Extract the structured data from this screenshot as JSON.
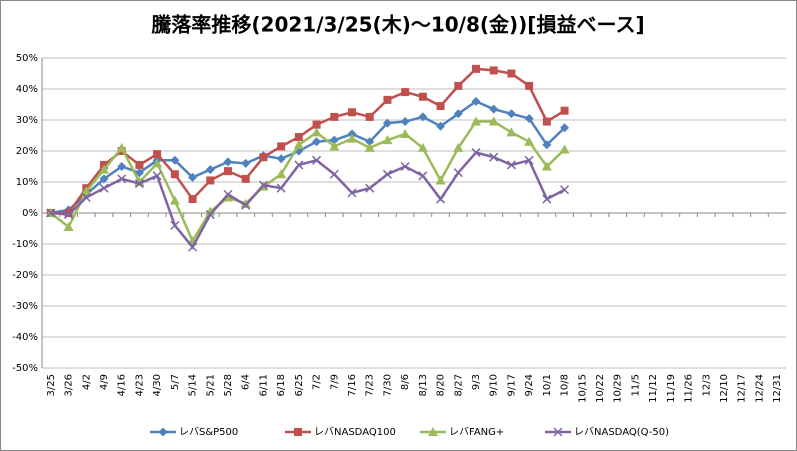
{
  "chart_data": {
    "type": "line",
    "title": "騰落率推移(2021/3/25(木)～10/8(金))[損益ベース]",
    "categories": [
      "3/25",
      "3/26",
      "4/2",
      "4/9",
      "4/16",
      "4/23",
      "4/30",
      "5/7",
      "5/14",
      "5/21",
      "5/28",
      "6/4",
      "6/11",
      "6/18",
      "6/25",
      "7/2",
      "7/9",
      "7/16",
      "7/23",
      "7/30",
      "8/6",
      "8/13",
      "8/20",
      "8/27",
      "9/3",
      "9/10",
      "9/17",
      "9/24",
      "10/1",
      "10/8",
      "10/15",
      "10/22",
      "10/29",
      "11/5",
      "11/12",
      "11/19",
      "11/26",
      "12/3",
      "12/10",
      "12/17",
      "12/24",
      "12/31"
    ],
    "series": [
      {
        "name": "レバS&P500",
        "color": "#4f81bd",
        "marker": "diamond",
        "values": [
          0,
          1,
          6,
          11,
          15,
          13,
          17,
          17,
          11.5,
          14,
          16.5,
          16,
          18.5,
          17.5,
          20,
          23,
          23.5,
          25.5,
          23,
          29,
          29.5,
          31,
          28,
          32,
          36,
          33.5,
          32,
          30.5,
          22,
          27.5,
          null,
          null,
          null,
          null,
          null,
          null,
          null,
          null,
          null,
          null,
          null,
          null
        ]
      },
      {
        "name": "レバNASDAQ100",
        "color": "#c0504d",
        "marker": "square",
        "values": [
          0,
          0,
          8,
          15.5,
          20,
          15.5,
          19,
          12.5,
          4.5,
          10.5,
          13.5,
          11,
          18,
          21.5,
          24.5,
          28.5,
          31,
          32.5,
          31,
          36.5,
          39,
          37.5,
          34.5,
          41,
          46.5,
          46,
          45,
          41,
          29.5,
          33,
          null,
          null,
          null,
          null,
          null,
          null,
          null,
          null,
          null,
          null,
          null,
          null
        ]
      },
      {
        "name": "レバFANG+",
        "color": "#9bbb59",
        "marker": "triangle",
        "values": [
          0,
          -4.5,
          7,
          14,
          21,
          10,
          16,
          4,
          -9,
          0.5,
          5,
          3,
          8.5,
          12.5,
          22,
          26,
          21.5,
          24,
          21,
          23.5,
          25.5,
          21,
          10.5,
          21,
          29.5,
          29.5,
          26,
          23,
          15,
          20.5,
          null,
          null,
          null,
          null,
          null,
          null,
          null,
          null,
          null,
          null,
          null,
          null
        ]
      },
      {
        "name": "レバNASDAQ(Q-50)",
        "color": "#8064a2",
        "marker": "x",
        "values": [
          0,
          -0.5,
          5,
          8,
          11,
          9.5,
          12,
          -4,
          -11,
          -0.5,
          6,
          2.5,
          9,
          8,
          15.5,
          17,
          12.5,
          6.5,
          8,
          12.5,
          15,
          12,
          4.5,
          13,
          19.5,
          18,
          15.5,
          17,
          4.5,
          7.5,
          null,
          null,
          null,
          null,
          null,
          null,
          null,
          null,
          null,
          null,
          null,
          null
        ]
      }
    ],
    "ylim": [
      -50,
      50
    ],
    "yticks": [
      {
        "value": -50,
        "label": "-50%"
      },
      {
        "value": -40,
        "label": "-40%"
      },
      {
        "value": -30,
        "label": "-30%"
      },
      {
        "value": -20,
        "label": "-20%"
      },
      {
        "value": -10,
        "label": "-10%"
      },
      {
        "value": 0,
        "label": "0%"
      },
      {
        "value": 10,
        "label": "10%"
      },
      {
        "value": 20,
        "label": "20%"
      },
      {
        "value": 30,
        "label": "30%"
      },
      {
        "value": 40,
        "label": "40%"
      },
      {
        "value": 50,
        "label": "50%"
      }
    ],
    "grid": true,
    "legend": "bottom"
  }
}
